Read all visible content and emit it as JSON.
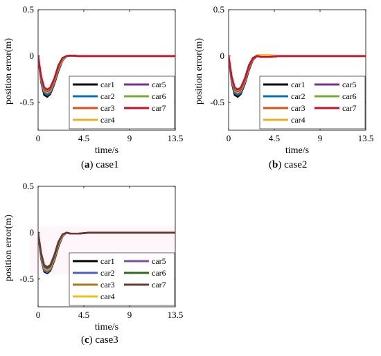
{
  "figure": {
    "captions": [
      {
        "letter": "a",
        "text": "case1"
      },
      {
        "letter": "b",
        "text": "case2"
      },
      {
        "letter": "c",
        "text": "case3"
      }
    ]
  },
  "chart_data": [
    {
      "type": "line",
      "panel": "a",
      "ylabel": "position error(m)",
      "xlabel": "time/s",
      "xlim": [
        0,
        13.5
      ],
      "ylim": [
        -0.8,
        0.5
      ],
      "xticks": [
        "0",
        "4.5",
        "9",
        "13.5"
      ],
      "yticks": [
        "0.5",
        "0",
        "-0.5"
      ],
      "ytick_values": [
        0.5,
        0,
        -0.5
      ],
      "xtick_values": [
        0,
        4.5,
        9,
        13.5
      ],
      "legend_position": "lower-right",
      "series": [
        {
          "name": "car1",
          "color": "#000000",
          "x": [
            0,
            0.3,
            0.6,
            0.9,
            1.2,
            1.6,
            2.0,
            2.4,
            2.8,
            3.2,
            4.0,
            5.0,
            7.0,
            9.0,
            13.5
          ],
          "values": [
            0,
            -0.28,
            -0.42,
            -0.44,
            -0.41,
            -0.3,
            -0.16,
            -0.05,
            0.0,
            0.005,
            0.0,
            0.0,
            0.0,
            0.0,
            0.0
          ]
        },
        {
          "name": "car2",
          "color": "#0072BD",
          "x": [
            0,
            0.3,
            0.6,
            0.9,
            1.2,
            1.6,
            2.0,
            2.4,
            2.8,
            3.2,
            4.0,
            5.0,
            7.0,
            9.0,
            13.5
          ],
          "values": [
            0,
            -0.27,
            -0.4,
            -0.42,
            -0.4,
            -0.29,
            -0.15,
            -0.05,
            0.0,
            0.005,
            0.0,
            0.0,
            0.0,
            0.0,
            0.0
          ]
        },
        {
          "name": "car3",
          "color": "#D95319",
          "x": [
            0,
            0.3,
            0.6,
            0.9,
            1.2,
            1.6,
            2.0,
            2.4,
            2.8,
            3.2,
            4.0,
            5.0,
            7.0,
            9.0,
            13.5
          ],
          "values": [
            0,
            -0.26,
            -0.38,
            -0.4,
            -0.38,
            -0.28,
            -0.14,
            -0.04,
            0.0,
            0.005,
            0.0,
            0.0,
            0.0,
            0.0,
            0.0
          ]
        },
        {
          "name": "car4",
          "color": "#EDB120",
          "x": [
            0,
            0.3,
            0.6,
            0.9,
            1.2,
            1.6,
            2.0,
            2.4,
            2.8,
            3.2,
            4.0,
            5.0,
            7.0,
            9.0,
            13.5
          ],
          "values": [
            0,
            -0.25,
            -0.37,
            -0.39,
            -0.37,
            -0.27,
            -0.13,
            -0.04,
            0.0,
            0.005,
            0.0,
            0.0,
            0.0,
            0.0,
            0.0
          ]
        },
        {
          "name": "car5",
          "color": "#7E2F8E",
          "x": [
            0,
            0.3,
            0.6,
            0.9,
            1.2,
            1.6,
            2.0,
            2.4,
            2.8,
            3.2,
            4.0,
            5.0,
            7.0,
            9.0,
            13.5
          ],
          "values": [
            0,
            -0.24,
            -0.36,
            -0.38,
            -0.36,
            -0.26,
            -0.12,
            -0.03,
            0.0,
            0.005,
            0.0,
            0.0,
            0.0,
            0.0,
            0.0
          ]
        },
        {
          "name": "car6",
          "color": "#77AC30",
          "x": [
            0,
            0.3,
            0.6,
            0.9,
            1.2,
            1.6,
            2.0,
            2.4,
            2.8,
            3.2,
            4.0,
            5.0,
            7.0,
            9.0,
            13.5
          ],
          "values": [
            0,
            -0.23,
            -0.35,
            -0.37,
            -0.35,
            -0.25,
            -0.11,
            -0.03,
            0.0,
            0.005,
            0.0,
            0.0,
            0.0,
            0.0,
            0.0
          ]
        },
        {
          "name": "car7",
          "color": "#C8102E",
          "x": [
            0,
            0.3,
            0.6,
            0.9,
            1.2,
            1.6,
            2.0,
            2.4,
            2.8,
            3.2,
            4.0,
            5.0,
            7.0,
            9.0,
            13.5
          ],
          "values": [
            0,
            -0.22,
            -0.34,
            -0.36,
            -0.34,
            -0.24,
            -0.1,
            -0.02,
            0.0,
            0.005,
            0.0,
            0.0,
            0.0,
            0.0,
            0.0
          ]
        }
      ]
    },
    {
      "type": "line",
      "panel": "b",
      "ylabel": "position error(m)",
      "xlabel": "time/s",
      "xlim": [
        0,
        13.5
      ],
      "ylim": [
        -0.8,
        0.5
      ],
      "xticks": [
        "0",
        "4.5",
        "9",
        "13.5"
      ],
      "yticks": [
        "0.5",
        "0",
        "-0.5"
      ],
      "ytick_values": [
        0.5,
        0,
        -0.5
      ],
      "xtick_values": [
        0,
        4.5,
        9,
        13.5
      ],
      "legend_position": "lower-right",
      "series": [
        {
          "name": "car1",
          "color": "#000000",
          "x": [
            0,
            0.3,
            0.6,
            0.9,
            1.2,
            1.6,
            2.0,
            2.4,
            2.8,
            3.2,
            4.0,
            5.0,
            7.0,
            9.0,
            13.5
          ],
          "values": [
            0,
            -0.28,
            -0.42,
            -0.44,
            -0.41,
            -0.3,
            -0.15,
            -0.04,
            0.0,
            -0.01,
            -0.01,
            0.0,
            0.0,
            0.0,
            0.0
          ]
        },
        {
          "name": "car2",
          "color": "#0072BD",
          "x": [
            0,
            0.3,
            0.6,
            0.9,
            1.2,
            1.6,
            2.0,
            2.4,
            2.8,
            3.2,
            4.0,
            5.0,
            7.0,
            9.0,
            13.5
          ],
          "values": [
            0,
            -0.27,
            -0.4,
            -0.42,
            -0.4,
            -0.29,
            -0.14,
            -0.04,
            0.0,
            -0.01,
            -0.01,
            0.0,
            0.0,
            0.0,
            0.0
          ]
        },
        {
          "name": "car3",
          "color": "#D95319",
          "x": [
            0,
            0.3,
            0.6,
            0.9,
            1.2,
            1.6,
            2.0,
            2.4,
            2.8,
            3.2,
            4.0,
            5.0,
            7.0,
            9.0,
            13.5
          ],
          "values": [
            0,
            -0.26,
            -0.38,
            -0.4,
            -0.38,
            -0.28,
            -0.13,
            -0.03,
            0.0,
            -0.01,
            -0.01,
            0.0,
            0.0,
            0.0,
            0.0
          ]
        },
        {
          "name": "car4",
          "color": "#EDB120",
          "x": [
            0,
            0.3,
            0.6,
            0.9,
            1.2,
            1.6,
            2.0,
            2.4,
            2.8,
            3.2,
            4.0,
            5.0,
            7.0,
            9.0,
            13.5
          ],
          "values": [
            0,
            -0.25,
            -0.37,
            -0.39,
            -0.37,
            -0.27,
            -0.12,
            -0.02,
            0.01,
            0.01,
            0.01,
            0.0,
            0.0,
            0.0,
            0.0
          ]
        },
        {
          "name": "car5",
          "color": "#7E2F8E",
          "x": [
            0,
            0.3,
            0.6,
            0.9,
            1.2,
            1.6,
            2.0,
            2.4,
            2.8,
            3.2,
            4.0,
            5.0,
            7.0,
            9.0,
            13.5
          ],
          "values": [
            0,
            -0.24,
            -0.36,
            -0.38,
            -0.36,
            -0.26,
            -0.11,
            -0.02,
            0.0,
            -0.01,
            -0.01,
            0.0,
            0.0,
            0.0,
            0.0
          ]
        },
        {
          "name": "car6",
          "color": "#77AC30",
          "x": [
            0,
            0.3,
            0.6,
            0.9,
            1.2,
            1.6,
            2.0,
            2.4,
            2.8,
            3.2,
            4.0,
            5.0,
            7.0,
            9.0,
            13.5
          ],
          "values": [
            0,
            -0.23,
            -0.35,
            -0.37,
            -0.35,
            -0.25,
            -0.1,
            -0.02,
            0.0,
            -0.01,
            -0.01,
            0.0,
            0.0,
            0.0,
            0.0
          ]
        },
        {
          "name": "car7",
          "color": "#C8102E",
          "x": [
            0,
            0.3,
            0.6,
            0.9,
            1.2,
            1.6,
            2.0,
            2.4,
            2.8,
            3.2,
            4.0,
            5.0,
            7.0,
            9.0,
            13.5
          ],
          "values": [
            0,
            -0.22,
            -0.34,
            -0.36,
            -0.34,
            -0.24,
            -0.1,
            -0.02,
            0.0,
            -0.01,
            -0.01,
            0.0,
            0.0,
            0.0,
            0.0
          ]
        }
      ]
    },
    {
      "type": "line",
      "panel": "c",
      "ylabel": "position error(m)",
      "xlabel": "time/s",
      "xlim": [
        0,
        13.5
      ],
      "ylim": [
        -0.8,
        0.5
      ],
      "xticks": [
        "0",
        "4.5",
        "9",
        "13.5"
      ],
      "yticks": [
        "0.5",
        "0",
        "-0.5"
      ],
      "ytick_values": [
        0.5,
        0,
        -0.5
      ],
      "xtick_values": [
        0,
        4.5,
        9,
        13.5
      ],
      "legend_position": "lower-right",
      "series": [
        {
          "name": "car1",
          "color": "#000000",
          "x": [
            0,
            0.3,
            0.6,
            0.9,
            1.2,
            1.6,
            2.0,
            2.4,
            2.8,
            3.2,
            4.0,
            5.0,
            7.0,
            9.0,
            13.5
          ],
          "values": [
            0,
            -0.28,
            -0.42,
            -0.44,
            -0.41,
            -0.3,
            -0.15,
            -0.04,
            0.0,
            -0.01,
            -0.01,
            0.0,
            0.0,
            0.0,
            0.0
          ]
        },
        {
          "name": "car2",
          "color": "#4B5DBE",
          "x": [
            0,
            0.3,
            0.6,
            0.9,
            1.2,
            1.6,
            2.0,
            2.4,
            2.8,
            3.2,
            4.0,
            5.0,
            7.0,
            9.0,
            13.5
          ],
          "values": [
            0,
            -0.27,
            -0.41,
            -0.43,
            -0.4,
            -0.29,
            -0.14,
            -0.04,
            0.0,
            -0.01,
            -0.01,
            0.0,
            0.0,
            0.0,
            0.0
          ]
        },
        {
          "name": "car3",
          "color": "#A6781E",
          "x": [
            0,
            0.3,
            0.6,
            0.9,
            1.2,
            1.6,
            2.0,
            2.4,
            2.8,
            3.2,
            4.0,
            5.0,
            7.0,
            9.0,
            13.5
          ],
          "values": [
            0,
            -0.26,
            -0.39,
            -0.41,
            -0.39,
            -0.28,
            -0.13,
            -0.03,
            0.0,
            -0.01,
            -0.01,
            0.0,
            0.0,
            0.0,
            0.0
          ]
        },
        {
          "name": "car4",
          "color": "#E8C21A",
          "x": [
            0,
            0.3,
            0.6,
            0.9,
            1.2,
            1.6,
            2.0,
            2.4,
            2.8,
            3.2,
            4.0,
            5.0,
            7.0,
            9.0,
            13.5
          ],
          "values": [
            0,
            -0.25,
            -0.38,
            -0.4,
            -0.38,
            -0.27,
            -0.12,
            -0.03,
            0.0,
            -0.01,
            -0.01,
            0.0,
            0.0,
            0.0,
            0.0
          ]
        },
        {
          "name": "car5",
          "color": "#7D4CA0",
          "x": [
            0,
            0.3,
            0.6,
            0.9,
            1.2,
            1.6,
            2.0,
            2.4,
            2.8,
            3.2,
            4.0,
            5.0,
            7.0,
            9.0,
            13.5
          ],
          "values": [
            0,
            -0.24,
            -0.37,
            -0.39,
            -0.37,
            -0.26,
            -0.11,
            -0.02,
            0.0,
            -0.01,
            -0.01,
            0.0,
            0.0,
            0.0,
            0.0
          ]
        },
        {
          "name": "car6",
          "color": "#2F6B1E",
          "x": [
            0,
            0.3,
            0.6,
            0.9,
            1.2,
            1.6,
            2.0,
            2.4,
            2.8,
            3.2,
            4.0,
            5.0,
            7.0,
            9.0,
            13.5
          ],
          "values": [
            0,
            -0.23,
            -0.36,
            -0.38,
            -0.36,
            -0.25,
            -0.1,
            -0.02,
            0.0,
            -0.01,
            -0.01,
            0.0,
            0.0,
            0.0,
            0.0
          ]
        },
        {
          "name": "car7",
          "color": "#6B3A2E",
          "x": [
            0,
            0.3,
            0.6,
            0.9,
            1.2,
            1.6,
            2.0,
            2.4,
            2.8,
            3.2,
            4.0,
            5.0,
            7.0,
            9.0,
            13.5
          ],
          "values": [
            0,
            -0.22,
            -0.35,
            -0.37,
            -0.35,
            -0.24,
            -0.1,
            -0.02,
            0.0,
            -0.01,
            -0.01,
            0.0,
            0.0,
            0.0,
            0.0
          ]
        }
      ]
    }
  ]
}
